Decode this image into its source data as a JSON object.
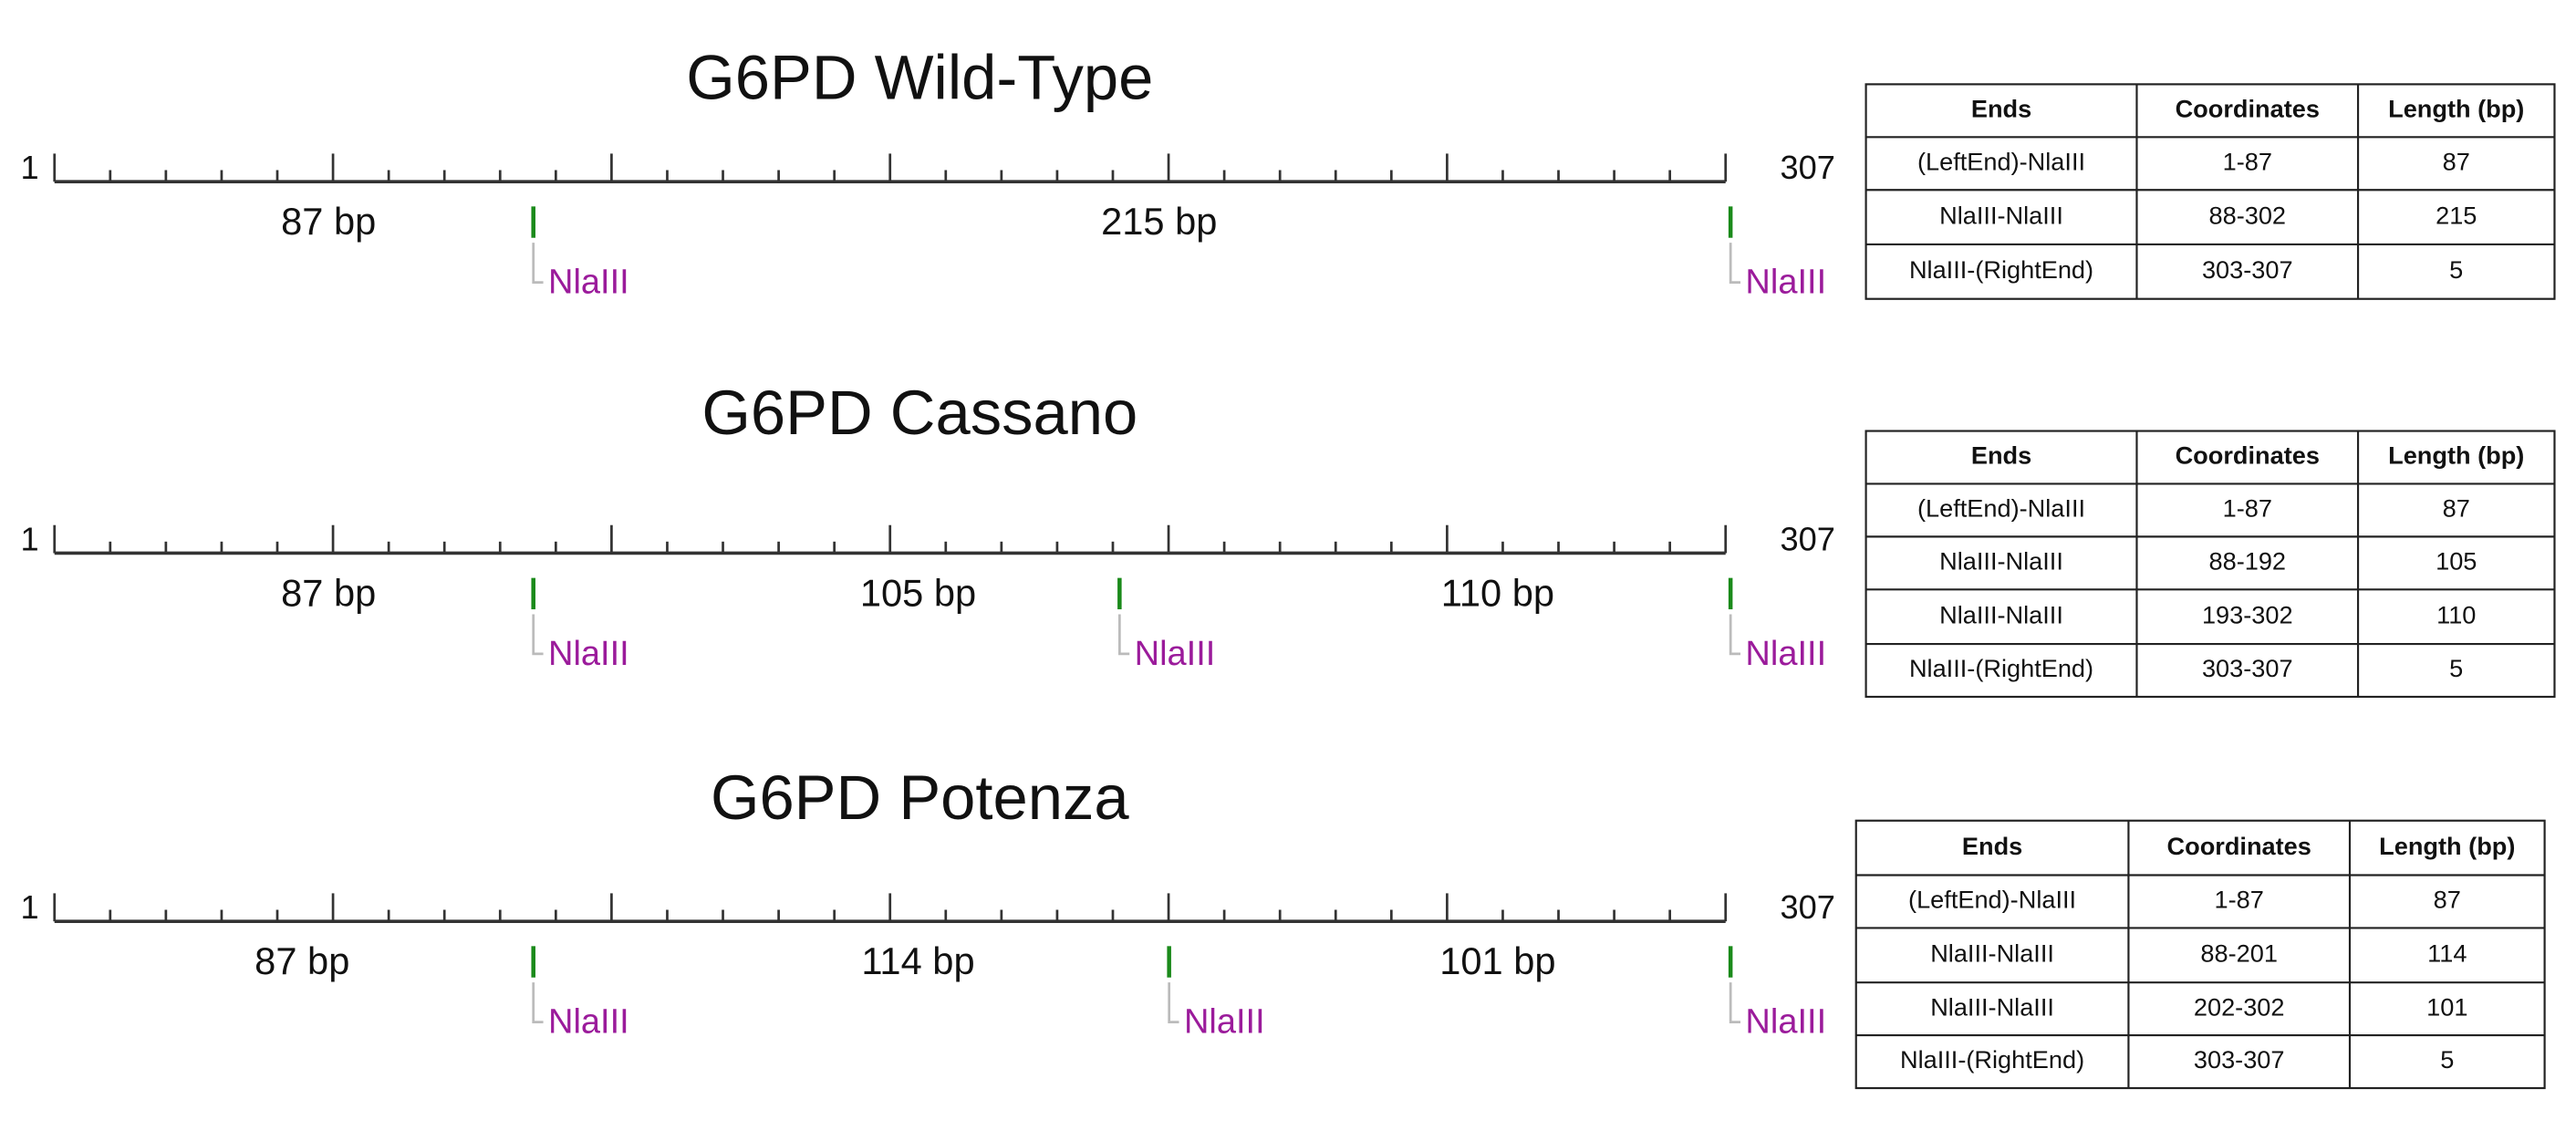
{
  "panels": [
    {
      "title": "G6PD Wild-Type",
      "scale_start": 1,
      "scale_end": 307,
      "fragments": [
        "87 bp",
        "215 bp"
      ],
      "sites": [
        "NlaIII",
        "NlaIII"
      ],
      "table": {
        "header": [
          "Ends",
          "Coordinates",
          "Length (bp)"
        ],
        "rows": [
          [
            "(LeftEnd)-NlaIII",
            "1-87",
            87
          ],
          [
            "NlaIII-NlaIII",
            "88-302",
            215
          ],
          [
            "NlaIII-(RightEnd)",
            "303-307",
            5
          ]
        ]
      }
    },
    {
      "title": "G6PD Cassano",
      "scale_start": 1,
      "scale_end": 307,
      "fragments": [
        "87 bp",
        "105 bp",
        "110 bp"
      ],
      "sites": [
        "NlaIII",
        "NlaIII",
        "NlaIII"
      ],
      "table": {
        "header": [
          "Ends",
          "Coordinates",
          "Length (bp)"
        ],
        "rows": [
          [
            "(LeftEnd)-NlaIII",
            "1-87",
            87
          ],
          [
            "NlaIII-NlaIII",
            "88-192",
            105
          ],
          [
            "NlaIII-NlaIII",
            "193-302",
            110
          ],
          [
            "NlaIII-(RightEnd)",
            "303-307",
            5
          ]
        ]
      }
    },
    {
      "title": "G6PD Potenza",
      "scale_start": 1,
      "scale_end": 307,
      "fragments": [
        "87 bp",
        "114 bp",
        "101 bp"
      ],
      "sites": [
        "NlaIII",
        "NlaIII",
        "NlaIII"
      ],
      "table": {
        "header": [
          "Ends",
          "Coordinates",
          "Length (bp)"
        ],
        "rows": [
          [
            "(LeftEnd)-NlaIII",
            "1-87",
            87
          ],
          [
            "NlaIII-NlaIII",
            "88-201",
            114
          ],
          [
            "NlaIII-NlaIII",
            "202-302",
            101
          ],
          [
            "NlaIII-(RightEnd)",
            "303-307",
            5
          ]
        ]
      }
    }
  ]
}
